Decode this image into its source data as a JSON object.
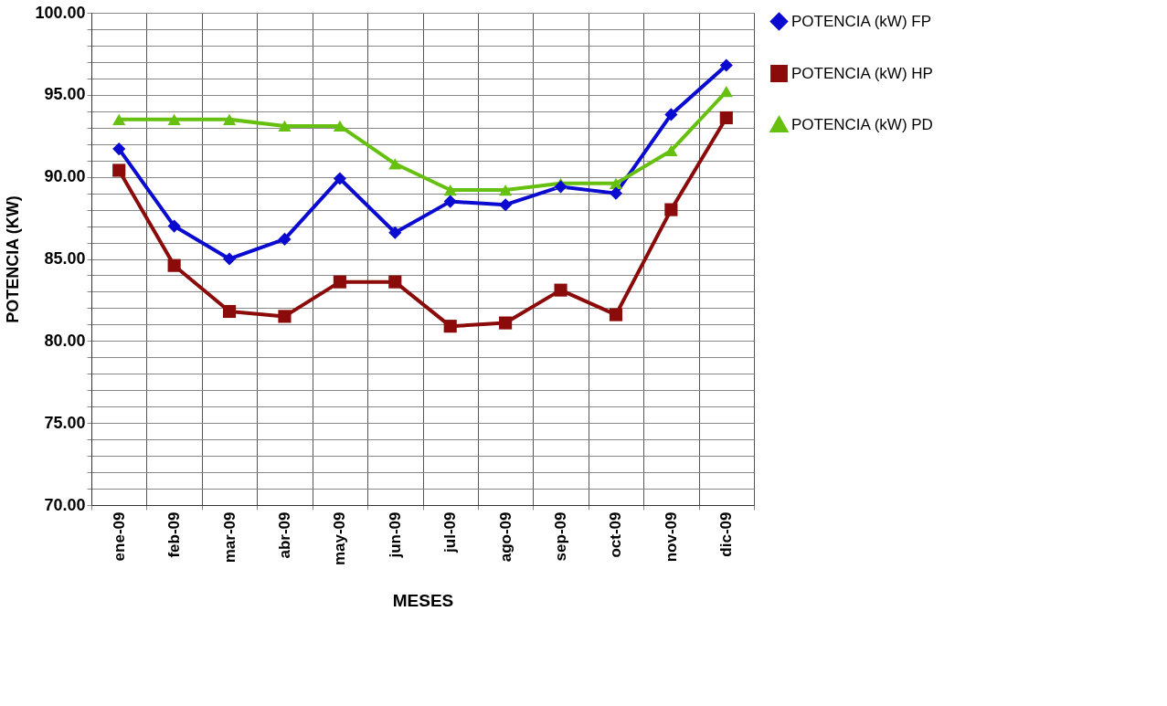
{
  "chart_data": {
    "type": "line",
    "xlabel": "MESES",
    "ylabel": "POTENCIA  (KW)",
    "categories": [
      "ene-09",
      "feb-09",
      "mar-09",
      "abr-09",
      "may-09",
      "jun-09",
      "jul-09",
      "ago-09",
      "sep-09",
      "oct-09",
      "nov-09",
      "dic-09"
    ],
    "series": [
      {
        "name": "POTENCIA (kW) FP",
        "color": "#0a0ad0",
        "marker": "diamond",
        "values": [
          91.7,
          87.0,
          85.0,
          86.2,
          89.9,
          86.6,
          88.5,
          88.3,
          89.4,
          89.0,
          93.8,
          96.8
        ]
      },
      {
        "name": "POTENCIA (kW) HP",
        "color": "#8b0a0a",
        "marker": "square",
        "values": [
          90.4,
          84.6,
          81.8,
          81.5,
          83.6,
          83.6,
          80.9,
          81.1,
          83.1,
          81.6,
          88.0,
          93.6
        ]
      },
      {
        "name": "POTENCIA (kW) PD",
        "color": "#66c010",
        "marker": "triangle",
        "values": [
          93.5,
          93.5,
          93.5,
          93.1,
          93.1,
          90.8,
          89.2,
          89.2,
          89.6,
          89.6,
          91.6,
          95.2
        ]
      }
    ],
    "ylim": [
      70,
      100
    ],
    "yticks": [
      {
        "value": 70,
        "label": "70.00"
      },
      {
        "value": 71,
        "label": null
      },
      {
        "value": 72,
        "label": null
      },
      {
        "value": 73,
        "label": null
      },
      {
        "value": 74,
        "label": null
      },
      {
        "value": 75,
        "label": "75.00"
      },
      {
        "value": 76,
        "label": null
      },
      {
        "value": 77,
        "label": null
      },
      {
        "value": 78,
        "label": null
      },
      {
        "value": 79,
        "label": null
      },
      {
        "value": 80,
        "label": "80.00"
      },
      {
        "value": 81,
        "label": null
      },
      {
        "value": 82,
        "label": null
      },
      {
        "value": 83,
        "label": null
      },
      {
        "value": 84,
        "label": null
      },
      {
        "value": 85,
        "label": "85.00"
      },
      {
        "value": 86,
        "label": null
      },
      {
        "value": 87,
        "label": null
      },
      {
        "value": 88,
        "label": null
      },
      {
        "value": 89,
        "label": null
      },
      {
        "value": 90,
        "label": "90.00"
      },
      {
        "value": 91,
        "label": null
      },
      {
        "value": 92,
        "label": null
      },
      {
        "value": 93,
        "label": null
      },
      {
        "value": 94,
        "label": null
      },
      {
        "value": 95,
        "label": "95.00"
      },
      {
        "value": 96,
        "label": null
      },
      {
        "value": 97,
        "label": null
      },
      {
        "value": 98,
        "label": null
      },
      {
        "value": 99,
        "label": null
      },
      {
        "value": 100,
        "label": "100.00"
      }
    ],
    "grid": true,
    "legend": "right",
    "line_style": "solid"
  }
}
